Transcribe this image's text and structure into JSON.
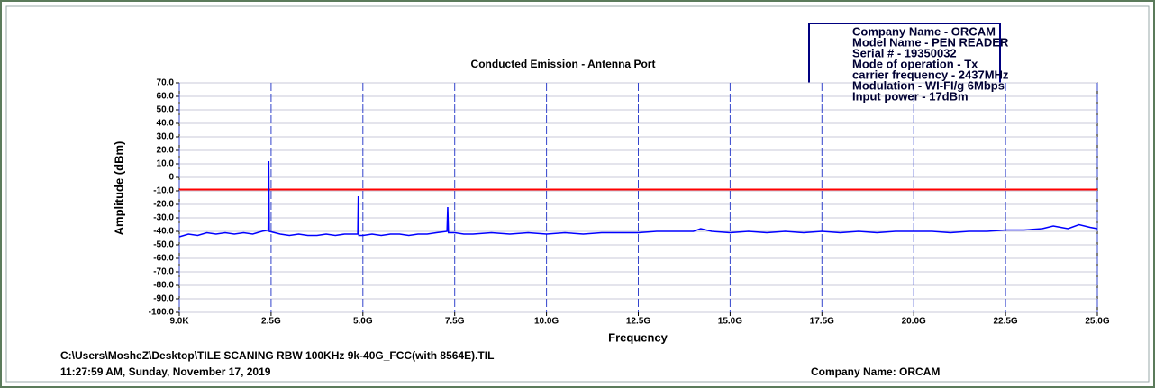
{
  "chart_data": {
    "type": "line",
    "title": "Conducted Emission - Antenna Port",
    "x_label": "Frequency",
    "y_label": "Amplitude (dBm)",
    "annotation": [
      "Company Name - ORCAM",
      "Model Name - PEN READER",
      "Serial # - 19350032",
      "Mode of operation - Tx",
      "carrier frequency - 2437MHz",
      "Modulation - WI-FI/g 6Mbps",
      "Input power - 17dBm"
    ],
    "footer_path": "C:\\Users\\MosheZ\\Desktop\\TILE SCANING RBW 100KHz  9k-40G_FCC(with 8564E).TIL",
    "footer_time": "11:27:59 AM, Sunday, November 17, 2019",
    "footer_company": "Company Name: ORCAM",
    "color": "#0000ff",
    "limit": -9,
    "limit_color": "#ff0000",
    "grid": true,
    "xlim": [
      9e-06,
      25
    ],
    "xticks": [
      {
        "value": 9e-06,
        "label": "9.0K"
      },
      {
        "value": 2.5,
        "label": "2.5G"
      },
      {
        "value": 5,
        "label": "5.0G"
      },
      {
        "value": 7.5,
        "label": "7.5G"
      },
      {
        "value": 10,
        "label": "10.0G"
      },
      {
        "value": 12.5,
        "label": "12.5G"
      },
      {
        "value": 15,
        "label": "15.0G"
      },
      {
        "value": 17.5,
        "label": "17.5G"
      },
      {
        "value": 20,
        "label": "20.0G"
      },
      {
        "value": 22.5,
        "label": "22.5G"
      },
      {
        "value": 25,
        "label": "25.0G"
      }
    ],
    "ylim": [
      -100,
      70
    ],
    "yticks": [
      {
        "value": 70,
        "label": "70.0"
      },
      {
        "value": 60,
        "label": "60.0"
      },
      {
        "value": 50,
        "label": "50.0"
      },
      {
        "value": 40,
        "label": "40.0"
      },
      {
        "value": 30,
        "label": "30.0"
      },
      {
        "value": 20,
        "label": "20.0"
      },
      {
        "value": 10,
        "label": "10.0"
      },
      0,
      {
        "value": -10,
        "label": "-10.0"
      },
      {
        "value": -20,
        "label": "-20.0"
      },
      {
        "value": -30,
        "label": "-30.0"
      },
      {
        "value": -40,
        "label": "-40.0"
      },
      {
        "value": -50,
        "label": "-50.0"
      },
      {
        "value": -60,
        "label": "-60.0"
      },
      {
        "value": -70,
        "label": "-70.0"
      },
      {
        "value": -80,
        "label": "-80.0"
      },
      {
        "value": -90,
        "label": "-90.0"
      },
      {
        "value": -100,
        "label": "-100.0"
      }
    ],
    "x": [
      9e-06,
      0.25,
      0.5,
      0.75,
      1,
      1.25,
      1.5,
      1.75,
      2,
      2.25,
      2.42,
      2.437,
      2.45,
      2.75,
      3,
      3.25,
      3.5,
      3.75,
      4,
      4.25,
      4.5,
      4.86,
      4.874,
      4.89,
      5,
      5.25,
      5.5,
      5.75,
      6,
      6.25,
      6.5,
      6.75,
      7,
      7.29,
      7.31,
      7.33,
      7.5,
      7.75,
      8,
      8.5,
      9,
      9.5,
      10,
      10.5,
      11,
      11.5,
      12,
      12.5,
      13,
      13.5,
      14,
      14.2,
      14.5,
      15,
      15.5,
      16,
      16.5,
      17,
      17.5,
      18,
      18.5,
      19,
      19.5,
      20,
      20.5,
      21,
      21.5,
      22,
      22.5,
      23,
      23.5,
      23.8,
      24,
      24.2,
      24.5,
      24.8,
      25
    ],
    "values": [
      -44,
      -42,
      -43,
      -41,
      -42,
      -41,
      -42,
      -41,
      -42,
      -40,
      -39,
      12,
      -40,
      -42,
      -43,
      -42,
      -43,
      -43,
      -42,
      -43,
      -42,
      -42,
      -14,
      -43,
      -43,
      -42,
      -43,
      -42,
      -42,
      -43,
      -42,
      -42,
      -41,
      -40,
      -22,
      -41,
      -41,
      -42,
      -42,
      -41,
      -42,
      -41,
      -42,
      -41,
      -42,
      -41,
      -41,
      -41,
      -40,
      -40,
      -40,
      -38,
      -40,
      -41,
      -40,
      -41,
      -40,
      -41,
      -40,
      -41,
      -40,
      -41,
      -40,
      -40,
      -40,
      -41,
      -40,
      -40,
      -39,
      -39,
      -38,
      -36,
      -37,
      -38,
      -35,
      -37,
      -38
    ]
  }
}
